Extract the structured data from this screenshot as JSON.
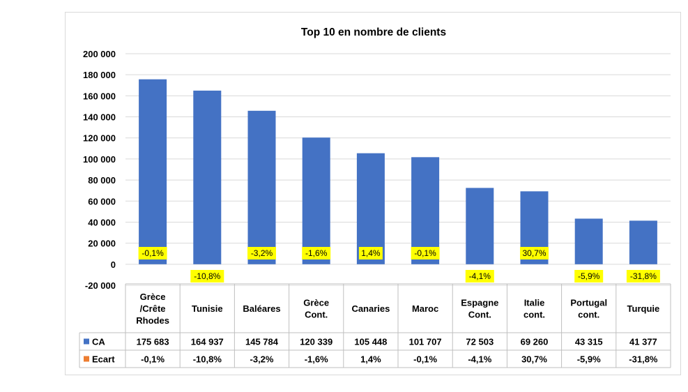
{
  "chart_data": {
    "type": "bar",
    "title": "Top 10 en nombre de clients",
    "categories": [
      [
        "Grèce",
        "/Crête",
        "Rhodes"
      ],
      [
        "Tunisie"
      ],
      [
        "Baléares"
      ],
      [
        "Grèce",
        "Cont."
      ],
      [
        "Canaries"
      ],
      [
        "Maroc"
      ],
      [
        "Espagne",
        "Cont."
      ],
      [
        "Italie",
        "cont."
      ],
      [
        "Portugal",
        "cont."
      ],
      [
        "Turquie"
      ]
    ],
    "ylim": [
      -20000,
      200000
    ],
    "yticks": [
      -20000,
      0,
      20000,
      40000,
      60000,
      80000,
      100000,
      120000,
      140000,
      160000,
      180000,
      200000
    ],
    "ytick_labels": [
      "-20 000",
      "0",
      "20 000",
      "40 000",
      "60 000",
      "80 000",
      "100 000",
      "120 000",
      "140 000",
      "160 000",
      "180 000",
      "200 000"
    ],
    "grid": true,
    "series": [
      {
        "name": "CA",
        "color": "#4472C4",
        "values": [
          175683,
          164937,
          145784,
          120339,
          105448,
          101707,
          72503,
          69260,
          43315,
          41377
        ],
        "labels": [
          "175 683",
          "164 937",
          "145 784",
          "120 339",
          "105 448",
          "101 707",
          "72 503",
          "69 260",
          "43 315",
          "41 377"
        ]
      },
      {
        "name": "Ecart",
        "color": "#ED7D31",
        "values": [
          -0.1,
          -10.8,
          -3.2,
          -1.6,
          1.4,
          -0.1,
          -4.1,
          30.7,
          -5.9,
          -31.8
        ],
        "labels": [
          "-0,1%",
          "-10,8%",
          "-3,2%",
          "-1,6%",
          "1,4%",
          "-0,1%",
          "-4,1%",
          "30,7%",
          "-5,9%",
          "-31,8%"
        ]
      }
    ],
    "data_label_highlight": "#FFFF00",
    "data_table": true
  }
}
